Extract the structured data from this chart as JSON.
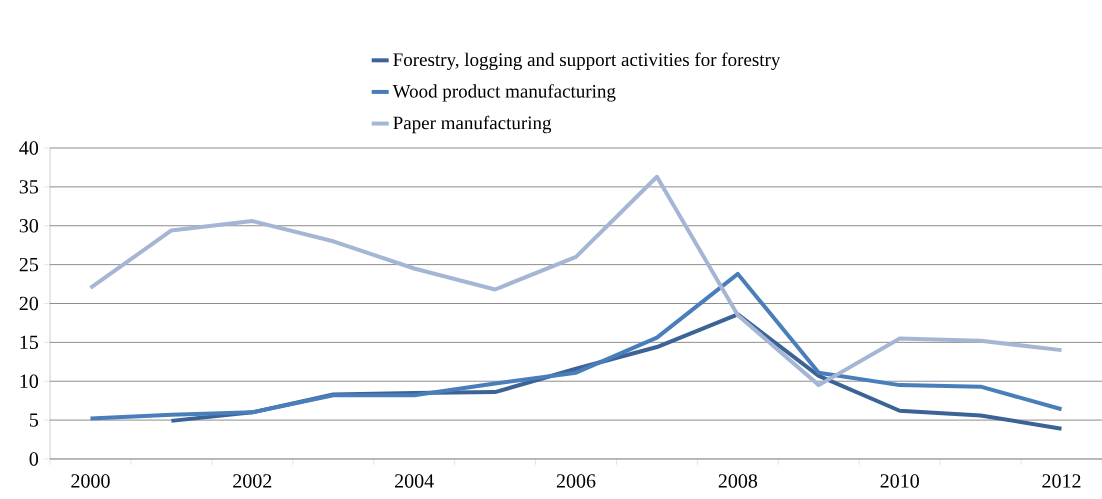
{
  "chart_data": {
    "type": "line",
    "categories": [
      "2000",
      null,
      "2002",
      null,
      "2004",
      null,
      "2006",
      null,
      "2008",
      null,
      "2010",
      null,
      "2012"
    ],
    "series": [
      {
        "name": "Forestry, logging and support activities for forestry",
        "color": "#3b6396",
        "values": [
          null,
          4.9,
          6.0,
          8.3,
          8.5,
          8.6,
          11.6,
          14.4,
          18.6,
          10.7,
          6.2,
          5.6,
          3.9
        ]
      },
      {
        "name": "Wood product manufacturing",
        "color": "#4a7ebb",
        "values": [
          5.2,
          5.7,
          6.0,
          8.2,
          8.2,
          9.7,
          11.1,
          15.6,
          23.8,
          11.1,
          9.5,
          9.3,
          6.4
        ]
      },
      {
        "name": "Paper manufacturing",
        "color": "#a5b6d5",
        "values": [
          22.0,
          29.4,
          30.6,
          28.0,
          24.5,
          21.8,
          26.0,
          36.3,
          18.5,
          9.5,
          15.5,
          15.2,
          14.0
        ]
      }
    ],
    "ylim": [
      0,
      40
    ],
    "yticks": [
      0,
      5,
      10,
      15,
      20,
      25,
      30,
      35,
      40
    ],
    "grid": "y",
    "legend": "top",
    "marker": "none",
    "line_style": "solid"
  }
}
